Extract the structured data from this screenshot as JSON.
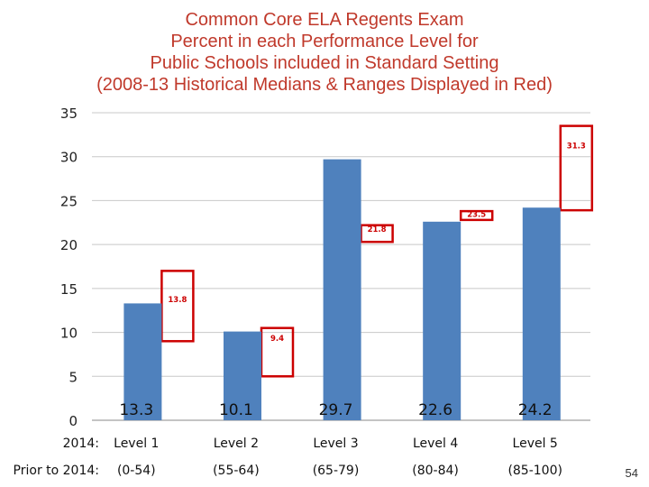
{
  "title_lines": [
    "Common Core ELA Regents Exam",
    "Percent in each Performance Level for",
    "Public Schools included in Standard Setting",
    "(2008-13 Historical Medians & Ranges Displayed in Red)"
  ],
  "slide_number": "54",
  "colors": {
    "bar": "#4f81bd",
    "title": "#c0392b",
    "range_box": "#cc0000",
    "grid": "#c8c8c8"
  },
  "chart_data": {
    "type": "bar",
    "title": "Common Core ELA Regents Exam Percent in each Performance Level for Public Schools included in Standard Setting (2008-13 Historical Medians & Ranges Displayed in Red)",
    "ylim": [
      0,
      35
    ],
    "yticks": [
      0,
      5,
      10,
      15,
      20,
      25,
      30,
      35
    ],
    "grid": true,
    "category_row_labels": [
      "2014:",
      "Prior to 2014:"
    ],
    "categories": [
      "Level 1",
      "Level 2",
      "Level 3",
      "Level 4",
      "Level 5"
    ],
    "sub_categories": [
      "(0-54)",
      "(55-64)",
      "(65-79)",
      "(80-84)",
      "(85-100)"
    ],
    "values": [
      13.3,
      10.1,
      29.7,
      22.6,
      24.2
    ],
    "value_labels": [
      "13.3",
      "10.1",
      "29.7",
      "22.6",
      "24.2"
    ],
    "historical_medians": [
      "13.8",
      "9.4",
      "21.8",
      "23.5",
      "31.3"
    ],
    "historical_ranges": [
      [
        9.0,
        17.0
      ],
      [
        5.0,
        10.5
      ],
      [
        20.3,
        22.2
      ],
      [
        22.8,
        23.8
      ],
      [
        23.9,
        33.5
      ]
    ]
  }
}
